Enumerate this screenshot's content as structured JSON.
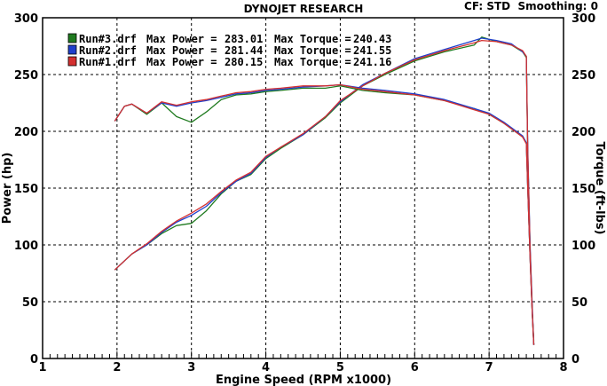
{
  "chart_data": {
    "type": "line",
    "title": "DYNOJET RESEARCH",
    "header_right": "CF: STD  Smoothing: 0",
    "xlabel": "Engine Speed (RPM x1000)",
    "ylabel": "Power (hp)",
    "y2label": "Torque (ft-lbs)",
    "xlim": [
      1,
      8
    ],
    "ylim": [
      0,
      300
    ],
    "y2lim": [
      0,
      300
    ],
    "x_ticks": [
      "1",
      "2",
      "3",
      "4",
      "5",
      "6",
      "7",
      "8"
    ],
    "y_ticks": [
      "0",
      "50",
      "100",
      "150",
      "200",
      "250",
      "300"
    ],
    "y2_ticks": [
      "0",
      "50",
      "100",
      "150",
      "200",
      "250",
      "300"
    ],
    "grid": "dashed",
    "legend_position": "top-left",
    "legend": [
      {
        "run": "Run#3.drf",
        "power_label": "Max Power =",
        "power": "283.01",
        "torque_label": "Max Torque =",
        "torque": "240.43",
        "color": "#1f7a1f"
      },
      {
        "run": "Run#2.drf",
        "power_label": "Max Power =",
        "power": "281.44",
        "torque_label": "Max Torque =",
        "torque": "241.55",
        "color": "#1f3fcc"
      },
      {
        "run": "Run#1.drf",
        "power_label": "Max Power =",
        "power": "280.15",
        "torque_label": "Max Torque =",
        "torque": "241.16",
        "color": "#d43030"
      }
    ],
    "series": [
      {
        "name": "Run#3.drf",
        "kind": "power",
        "color": "#1f7a1f",
        "x": [
          1.97,
          2.2,
          2.4,
          2.6,
          2.8,
          3.0,
          3.2,
          3.4,
          3.6,
          3.8,
          4.0,
          4.2,
          4.5,
          4.8,
          5.0,
          5.3,
          5.6,
          6.0,
          6.4,
          6.8,
          6.9,
          7.1,
          7.3,
          7.45,
          7.5,
          7.52,
          7.55,
          7.58,
          7.6
        ],
        "y": [
          78,
          92,
          100,
          110,
          117,
          119,
          130,
          145,
          156,
          162,
          176,
          185,
          197,
          212,
          225,
          240,
          250,
          262,
          270,
          276,
          283,
          279,
          276,
          270,
          265,
          180,
          95,
          40,
          15
        ]
      },
      {
        "name": "Run#2.drf",
        "kind": "power",
        "color": "#1f3fcc",
        "x": [
          1.97,
          2.2,
          2.4,
          2.6,
          2.8,
          3.0,
          3.2,
          3.4,
          3.6,
          3.8,
          4.0,
          4.2,
          4.5,
          4.8,
          5.0,
          5.3,
          5.6,
          6.0,
          6.4,
          6.8,
          6.9,
          7.1,
          7.3,
          7.45,
          7.5,
          7.52,
          7.55,
          7.58,
          7.6
        ],
        "y": [
          78,
          92,
          100,
          111,
          120,
          126,
          134,
          146,
          156,
          163,
          177,
          186,
          197,
          213,
          226,
          241,
          251,
          264,
          272,
          280,
          282,
          280,
          277,
          270,
          266,
          185,
          100,
          45,
          12
        ]
      },
      {
        "name": "Run#1.drf",
        "kind": "power",
        "color": "#d43030",
        "x": [
          1.97,
          2.2,
          2.4,
          2.6,
          2.8,
          3.0,
          3.2,
          3.4,
          3.6,
          3.8,
          4.0,
          4.2,
          4.5,
          4.8,
          5.0,
          5.3,
          5.6,
          6.0,
          6.4,
          6.8,
          6.9,
          7.1,
          7.3,
          7.45,
          7.5,
          7.52,
          7.55,
          7.58,
          7.6
        ],
        "y": [
          78,
          92,
          101,
          112,
          121,
          128,
          136,
          147,
          157,
          164,
          178,
          186,
          198,
          213,
          227,
          240,
          251,
          263,
          271,
          278,
          280,
          279,
          276,
          271,
          266,
          182,
          98,
          42,
          12
        ]
      },
      {
        "name": "Run#3.drf",
        "kind": "torque",
        "color": "#1f7a1f",
        "x": [
          1.97,
          2.1,
          2.2,
          2.4,
          2.6,
          2.8,
          3.0,
          3.2,
          3.4,
          3.6,
          3.8,
          4.0,
          4.2,
          4.5,
          4.8,
          5.0,
          5.3,
          5.6,
          6.0,
          6.4,
          6.8,
          7.0,
          7.2,
          7.45,
          7.5,
          7.52,
          7.55,
          7.58,
          7.6
        ],
        "y": [
          209,
          222,
          224,
          215,
          225,
          213,
          208,
          217,
          228,
          232,
          233,
          235,
          236,
          238,
          238,
          240,
          236,
          234,
          232,
          227,
          220,
          215,
          207,
          195,
          190,
          150,
          90,
          40,
          12
        ]
      },
      {
        "name": "Run#2.drf",
        "kind": "torque",
        "color": "#1f3fcc",
        "x": [
          1.97,
          2.1,
          2.2,
          2.4,
          2.6,
          2.8,
          3.0,
          3.2,
          3.4,
          3.6,
          3.8,
          4.0,
          4.2,
          4.5,
          4.8,
          5.0,
          5.3,
          5.6,
          6.0,
          6.4,
          6.8,
          7.0,
          7.2,
          7.45,
          7.5,
          7.52,
          7.55,
          7.58,
          7.6
        ],
        "y": [
          209,
          222,
          224,
          216,
          225,
          222,
          225,
          227,
          230,
          233,
          234,
          236,
          237,
          239,
          240,
          241,
          238,
          236,
          233,
          228,
          220,
          216,
          208,
          196,
          190,
          150,
          90,
          40,
          12
        ]
      },
      {
        "name": "Run#1.drf",
        "kind": "torque",
        "color": "#d43030",
        "x": [
          1.97,
          2.1,
          2.2,
          2.4,
          2.6,
          2.8,
          3.0,
          3.2,
          3.4,
          3.6,
          3.8,
          4.0,
          4.2,
          4.5,
          4.8,
          5.0,
          5.3,
          5.6,
          6.0,
          6.4,
          6.8,
          7.0,
          7.2,
          7.45,
          7.5,
          7.52,
          7.55,
          7.58,
          7.6
        ],
        "y": [
          209,
          222,
          224,
          216,
          226,
          223,
          226,
          228,
          231,
          234,
          235,
          237,
          238,
          240,
          240,
          241,
          237,
          235,
          232,
          227,
          219,
          215,
          207,
          195,
          189,
          150,
          90,
          40,
          12
        ]
      }
    ]
  }
}
